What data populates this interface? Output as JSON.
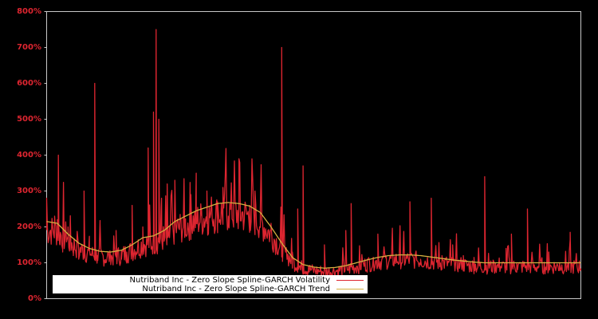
{
  "chart_data": {
    "type": "line",
    "title": "",
    "xlabel": "",
    "ylabel": "",
    "ylim": [
      0,
      800
    ],
    "yticks": [
      "0%",
      "100%",
      "200%",
      "300%",
      "400%",
      "500%",
      "600%",
      "700%",
      "800%"
    ],
    "grid": false,
    "legend_position": "lower-left",
    "colors": {
      "background": "#000000",
      "axis": "#c8c8c8",
      "tick_label": "#dd2530",
      "volatility": "#dd2530",
      "trend": "#d4b040"
    },
    "series": [
      {
        "name": "Nutriband Inc - Zero Slope Spline-GARCH Volatility",
        "color": "#dd2530",
        "x_frac": [
          0,
          0.015,
          0.02,
          0.022,
          0.025,
          0.03,
          0.04,
          0.05,
          0.06,
          0.07,
          0.08,
          0.09,
          0.095,
          0.1,
          0.11,
          0.12,
          0.13,
          0.14,
          0.15,
          0.16,
          0.17,
          0.18,
          0.19,
          0.2,
          0.205,
          0.21,
          0.215,
          0.22,
          0.225,
          0.23,
          0.24,
          0.25,
          0.26,
          0.27,
          0.28,
          0.29,
          0.3,
          0.31,
          0.32,
          0.33,
          0.34,
          0.35,
          0.36,
          0.37,
          0.38,
          0.39,
          0.4,
          0.42,
          0.44,
          0.46,
          0.47,
          0.475,
          0.48,
          0.49,
          0.5,
          0.52,
          0.54,
          0.56,
          0.565,
          0.57,
          0.58,
          0.6,
          0.62,
          0.64,
          0.66,
          0.68,
          0.7,
          0.72,
          0.74,
          0.76,
          0.78,
          0.8,
          0.82,
          0.84,
          0.86,
          0.87,
          0.88,
          0.9,
          0.92,
          0.94,
          0.96,
          0.98,
          1.0
        ],
        "values": [
          280,
          230,
          220,
          400,
          150,
          130,
          200,
          120,
          110,
          300,
          140,
          600,
          120,
          210,
          100,
          95,
          190,
          110,
          130,
          260,
          140,
          200,
          420,
          520,
          750,
          500,
          280,
          160,
          150,
          170,
          330,
          220,
          180,
          290,
          210,
          250,
          300,
          220,
          270,
          310,
          230,
          250,
          390,
          230,
          260,
          300,
          250,
          210,
          700,
          130,
          250,
          80,
          370,
          90,
          80,
          150,
          70,
          190,
          80,
          265,
          90,
          110,
          180,
          100,
          120,
          270,
          110,
          280,
          120,
          150,
          120,
          115,
          340,
          100,
          140,
          180,
          100,
          250,
          90,
          130,
          100,
          185,
          80
        ]
      },
      {
        "name": "Nutriband Inc - Zero Slope Spline-GARCH Trend",
        "color": "#d4b040",
        "x_frac": [
          0,
          0.02,
          0.04,
          0.06,
          0.08,
          0.1,
          0.12,
          0.14,
          0.16,
          0.18,
          0.2,
          0.22,
          0.24,
          0.26,
          0.28,
          0.3,
          0.32,
          0.34,
          0.36,
          0.38,
          0.4,
          0.42,
          0.44,
          0.46,
          0.48,
          0.5,
          0.52,
          0.54,
          0.56,
          0.58,
          0.6,
          0.62,
          0.64,
          0.66,
          0.68,
          0.7,
          0.72,
          0.74,
          0.76,
          0.78,
          0.8,
          0.82,
          0.84,
          0.86,
          0.88,
          0.9,
          0.92,
          0.94,
          0.96,
          0.98,
          1.0
        ],
        "values": [
          215,
          210,
          180,
          155,
          140,
          132,
          130,
          135,
          150,
          170,
          175,
          190,
          215,
          230,
          245,
          255,
          265,
          268,
          265,
          258,
          240,
          200,
          155,
          115,
          95,
          88,
          85,
          87,
          92,
          100,
          108,
          115,
          120,
          122,
          122,
          120,
          116,
          112,
          108,
          105,
          102,
          100,
          100,
          100,
          100,
          100,
          100,
          100,
          100,
          100,
          100
        ]
      }
    ]
  },
  "legend": {
    "items": [
      {
        "label": "Nutriband Inc - Zero Slope Spline-GARCH Volatility",
        "color": "#dd2530"
      },
      {
        "label": "Nutriband Inc - Zero Slope Spline-GARCH Trend",
        "color": "#d4b040"
      }
    ]
  }
}
